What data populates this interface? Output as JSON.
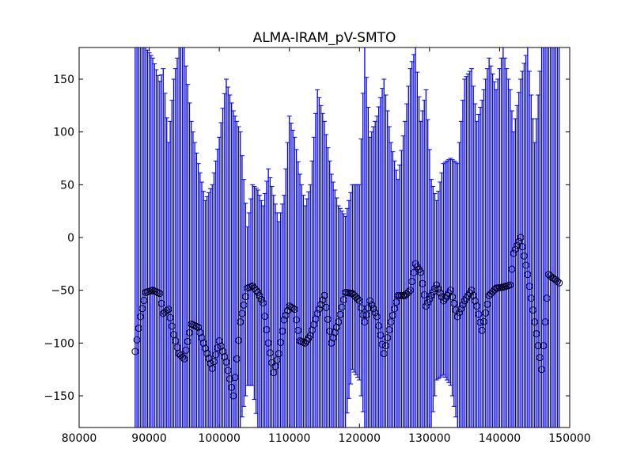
{
  "chart_data": {
    "type": "scatter",
    "title": "ALMA-IRAM_pV-SMTO",
    "xlabel": "",
    "ylabel": "",
    "xlim": [
      80000,
      150000
    ],
    "ylim": [
      -180,
      180
    ],
    "xticks": [
      80000,
      90000,
      100000,
      110000,
      120000,
      130000,
      140000,
      150000
    ],
    "yticks": [
      150,
      100,
      50,
      0,
      -50,
      -100,
      -150
    ],
    "xtick_labels": [
      "80000",
      "90000",
      "100000",
      "110000",
      "120000",
      "130000",
      "140000",
      "150000"
    ],
    "ytick_labels": [
      "150",
      "100",
      "50",
      "0",
      "−50",
      "−100",
      "−150"
    ],
    "grid": false,
    "colors": {
      "errorbar": "#0000ff",
      "marker_edge": "#000000",
      "frame": "#000000"
    },
    "x_range": [
      88000,
      148500
    ],
    "phase_series": {
      "name": "",
      "marker": "open-circle",
      "x_step": 250,
      "x": [
        88000,
        88750,
        89500,
        90500,
        91500,
        92000,
        92750,
        93500,
        94250,
        95000,
        96000,
        97000,
        98000,
        99000,
        100000,
        101000,
        102000,
        103000,
        104000,
        104750,
        105500,
        106250,
        107000,
        107750,
        108500,
        109250,
        110000,
        110750,
        111500,
        112250,
        113000,
        114000,
        115000,
        116000,
        117000,
        118000,
        119000,
        120000,
        120750,
        121500,
        122500,
        123500,
        124500,
        125500,
        126500,
        127250,
        128000,
        128750,
        129500,
        130250,
        131000,
        132000,
        133000,
        134000,
        135000,
        136000,
        136750,
        137500,
        138500,
        139500,
        140500,
        141500,
        142000,
        143000,
        144000,
        145000,
        146000,
        147000,
        147500,
        148000,
        148500
      ],
      "y": [
        -108,
        -75,
        -52,
        -50,
        -53,
        -72,
        -68,
        -92,
        -110,
        -115,
        -82,
        -85,
        -105,
        -124,
        -98,
        -118,
        -150,
        -80,
        -48,
        -46,
        -52,
        -62,
        -100,
        -128,
        -110,
        -78,
        -65,
        -68,
        -98,
        -100,
        -93,
        -72,
        -55,
        -100,
        -80,
        -52,
        -53,
        -60,
        -80,
        -60,
        -75,
        -110,
        -80,
        -55,
        -55,
        -50,
        -25,
        -33,
        -65,
        -55,
        -45,
        -60,
        -50,
        -75,
        -60,
        -50,
        -65,
        -88,
        -55,
        -48,
        -47,
        -45,
        -15,
        0,
        -35,
        -80,
        -125,
        -35,
        -38,
        -40,
        -43
      ]
    },
    "errorbar_upper": {
      "x": [
        88000,
        88750,
        89500,
        90500,
        91500,
        92000,
        92750,
        93500,
        94250,
        95000,
        96000,
        97000,
        98000,
        99000,
        100000,
        101000,
        102000,
        103000,
        104000,
        104750,
        105500,
        106250,
        107000,
        107750,
        108500,
        109250,
        110000,
        110750,
        111500,
        112250,
        113000,
        114000,
        115000,
        116000,
        117000,
        118000,
        119000,
        120000,
        120750,
        121500,
        122500,
        123500,
        124500,
        125500,
        126500,
        127250,
        128000,
        128750,
        129500,
        130250,
        131000,
        132000,
        133000,
        134000,
        135000,
        136000,
        136750,
        137500,
        138500,
        139500,
        140500,
        141500,
        142000,
        143000,
        144000,
        145000,
        146000,
        147000,
        147500,
        148000,
        148500
      ],
      "y": [
        180,
        180,
        180,
        170,
        148,
        160,
        90,
        150,
        180,
        180,
        110,
        70,
        35,
        50,
        95,
        150,
        120,
        100,
        10,
        50,
        45,
        30,
        65,
        40,
        15,
        40,
        115,
        95,
        60,
        30,
        50,
        140,
        110,
        60,
        30,
        20,
        50,
        50,
        180,
        95,
        115,
        150,
        90,
        55,
        110,
        160,
        180,
        110,
        140,
        55,
        35,
        70,
        75,
        70,
        150,
        160,
        110,
        130,
        170,
        140,
        180,
        140,
        100,
        150,
        180,
        90,
        180,
        180,
        180,
        180,
        180
      ]
    },
    "errorbar_lower": {
      "x": [
        88000,
        88750,
        89500,
        90500,
        91500,
        92000,
        92750,
        93500,
        94250,
        95000,
        96000,
        97000,
        98000,
        99000,
        100000,
        101000,
        102000,
        103000,
        104000,
        104750,
        105500,
        106250,
        107000,
        107750,
        108500,
        109250,
        110000,
        110750,
        111500,
        112250,
        113000,
        114000,
        115000,
        116000,
        117000,
        118000,
        119000,
        120000,
        120750,
        121500,
        122500,
        123500,
        124500,
        125500,
        126500,
        127250,
        128000,
        128750,
        129500,
        130250,
        131000,
        132000,
        133000,
        134000,
        135000,
        136000,
        136750,
        137500,
        138500,
        139500,
        140500,
        141500,
        142000,
        143000,
        144000,
        145000,
        146000,
        147000,
        147500,
        148000,
        148500
      ],
      "y": [
        -180,
        -180,
        -180,
        -180,
        -180,
        -180,
        -180,
        -180,
        -180,
        -180,
        -180,
        -180,
        -180,
        -180,
        -180,
        -180,
        -180,
        -180,
        -140,
        -140,
        -180,
        -180,
        -180,
        -180,
        -180,
        -180,
        -180,
        -180,
        -180,
        -180,
        -180,
        -180,
        -180,
        -180,
        -180,
        -180,
        -125,
        -135,
        -180,
        -180,
        -180,
        -180,
        -180,
        -180,
        -180,
        -180,
        -180,
        -180,
        -180,
        -180,
        -135,
        -130,
        -140,
        -180,
        -180,
        -180,
        -180,
        -180,
        -180,
        -180,
        -180,
        -180,
        -180,
        -180,
        -180,
        -180,
        -180,
        -180,
        -180,
        -180,
        -180
      ]
    }
  }
}
